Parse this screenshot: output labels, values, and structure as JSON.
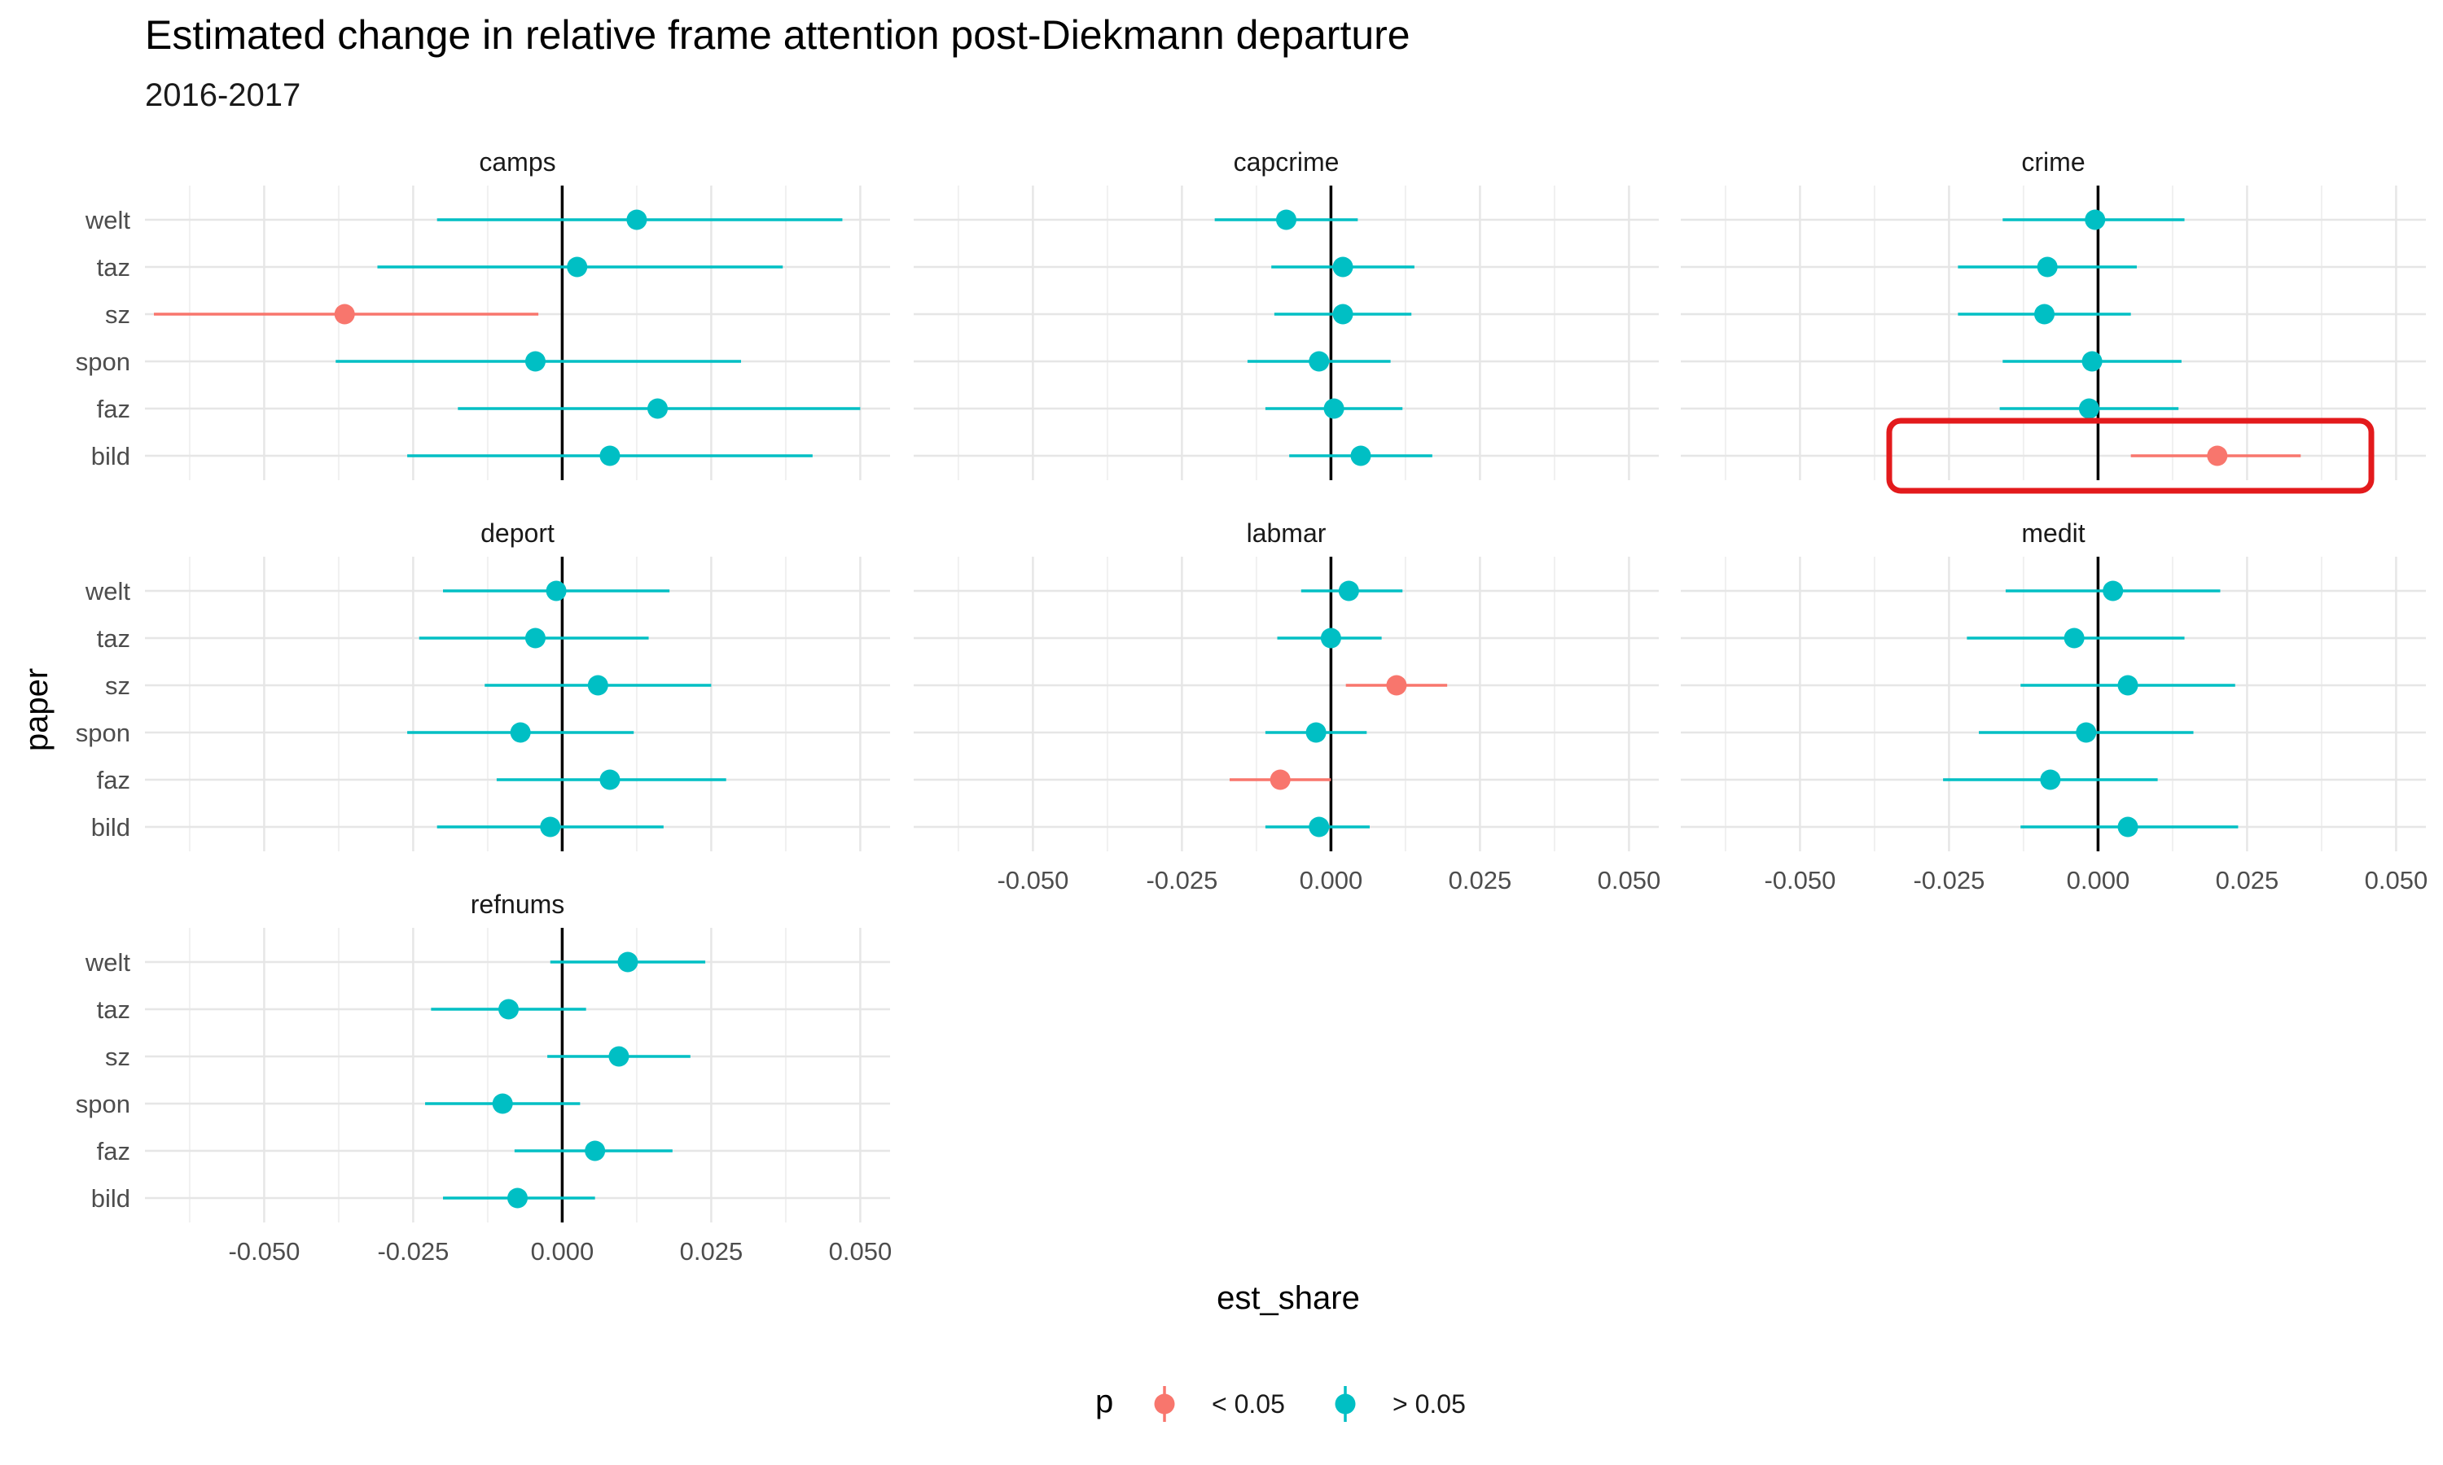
{
  "chart_data": {
    "type": "scatter",
    "title": "Estimated change in relative frame attention post-Diekmann departure",
    "subtitle": "2016-2017",
    "xlabel": "est_share",
    "ylabel": "paper",
    "xlim": [
      -0.07,
      0.055
    ],
    "x_ticks": [
      "-0.050",
      "-0.025",
      "0.000",
      "0.025",
      "0.050"
    ],
    "papers": [
      "welt",
      "taz",
      "sz",
      "spon",
      "faz",
      "bild"
    ],
    "grid": true,
    "legend": {
      "title": "p",
      "placement": "bottom",
      "entries": [
        {
          "label": "< 0.05",
          "color": "#F8766D"
        },
        {
          "label": "> 0.05",
          "color": "#00BFC4"
        }
      ]
    },
    "highlight_box": {
      "panel": "crime",
      "paper": "bild",
      "color": "#E31A1C"
    },
    "panels": [
      {
        "name": "camps",
        "points": [
          {
            "paper": "welt",
            "est": 0.0125,
            "lo": -0.021,
            "hi": 0.047,
            "sig": false
          },
          {
            "paper": "taz",
            "est": 0.0025,
            "lo": -0.031,
            "hi": 0.037,
            "sig": false
          },
          {
            "paper": "sz",
            "est": -0.0365,
            "lo": -0.0685,
            "hi": -0.004,
            "sig": true
          },
          {
            "paper": "spon",
            "est": -0.0045,
            "lo": -0.038,
            "hi": 0.03,
            "sig": false
          },
          {
            "paper": "faz",
            "est": 0.016,
            "lo": -0.0175,
            "hi": 0.05,
            "sig": false
          },
          {
            "paper": "bild",
            "est": 0.008,
            "lo": -0.026,
            "hi": 0.042,
            "sig": false
          }
        ]
      },
      {
        "name": "capcrime",
        "points": [
          {
            "paper": "welt",
            "est": -0.0075,
            "lo": -0.0195,
            "hi": 0.0045,
            "sig": false
          },
          {
            "paper": "taz",
            "est": 0.002,
            "lo": -0.01,
            "hi": 0.014,
            "sig": false
          },
          {
            "paper": "sz",
            "est": 0.002,
            "lo": -0.0095,
            "hi": 0.0135,
            "sig": false
          },
          {
            "paper": "spon",
            "est": -0.002,
            "lo": -0.014,
            "hi": 0.01,
            "sig": false
          },
          {
            "paper": "faz",
            "est": 0.0005,
            "lo": -0.011,
            "hi": 0.012,
            "sig": false
          },
          {
            "paper": "bild",
            "est": 0.005,
            "lo": -0.007,
            "hi": 0.017,
            "sig": false
          }
        ]
      },
      {
        "name": "crime",
        "points": [
          {
            "paper": "welt",
            "est": -0.0005,
            "lo": -0.016,
            "hi": 0.0145,
            "sig": false
          },
          {
            "paper": "taz",
            "est": -0.0085,
            "lo": -0.0235,
            "hi": 0.0065,
            "sig": false
          },
          {
            "paper": "sz",
            "est": -0.009,
            "lo": -0.0235,
            "hi": 0.0055,
            "sig": false
          },
          {
            "paper": "spon",
            "est": -0.001,
            "lo": -0.016,
            "hi": 0.014,
            "sig": false
          },
          {
            "paper": "faz",
            "est": -0.0015,
            "lo": -0.0165,
            "hi": 0.0135,
            "sig": false
          },
          {
            "paper": "bild",
            "est": 0.02,
            "lo": 0.0055,
            "hi": 0.034,
            "sig": true
          }
        ]
      },
      {
        "name": "deport",
        "points": [
          {
            "paper": "welt",
            "est": -0.001,
            "lo": -0.02,
            "hi": 0.018,
            "sig": false
          },
          {
            "paper": "taz",
            "est": -0.0045,
            "lo": -0.024,
            "hi": 0.0145,
            "sig": false
          },
          {
            "paper": "sz",
            "est": 0.006,
            "lo": -0.013,
            "hi": 0.025,
            "sig": false
          },
          {
            "paper": "spon",
            "est": -0.007,
            "lo": -0.026,
            "hi": 0.012,
            "sig": false
          },
          {
            "paper": "faz",
            "est": 0.008,
            "lo": -0.011,
            "hi": 0.0275,
            "sig": false
          },
          {
            "paper": "bild",
            "est": -0.002,
            "lo": -0.021,
            "hi": 0.017,
            "sig": false
          }
        ]
      },
      {
        "name": "labmar",
        "points": [
          {
            "paper": "welt",
            "est": 0.003,
            "lo": -0.005,
            "hi": 0.012,
            "sig": false
          },
          {
            "paper": "taz",
            "est": 0.0,
            "lo": -0.009,
            "hi": 0.0085,
            "sig": false
          },
          {
            "paper": "sz",
            "est": 0.011,
            "lo": 0.0025,
            "hi": 0.0195,
            "sig": true
          },
          {
            "paper": "spon",
            "est": -0.0025,
            "lo": -0.011,
            "hi": 0.006,
            "sig": false
          },
          {
            "paper": "faz",
            "est": -0.0085,
            "lo": -0.017,
            "hi": 0.0,
            "sig": true
          },
          {
            "paper": "bild",
            "est": -0.002,
            "lo": -0.011,
            "hi": 0.0065,
            "sig": false
          }
        ]
      },
      {
        "name": "medit",
        "points": [
          {
            "paper": "welt",
            "est": 0.0025,
            "lo": -0.0155,
            "hi": 0.0205,
            "sig": false
          },
          {
            "paper": "taz",
            "est": -0.004,
            "lo": -0.022,
            "hi": 0.0145,
            "sig": false
          },
          {
            "paper": "sz",
            "est": 0.005,
            "lo": -0.013,
            "hi": 0.023,
            "sig": false
          },
          {
            "paper": "spon",
            "est": -0.002,
            "lo": -0.02,
            "hi": 0.016,
            "sig": false
          },
          {
            "paper": "faz",
            "est": -0.008,
            "lo": -0.026,
            "hi": 0.01,
            "sig": false
          },
          {
            "paper": "bild",
            "est": 0.005,
            "lo": -0.013,
            "hi": 0.0235,
            "sig": false
          }
        ]
      },
      {
        "name": "refnums",
        "points": [
          {
            "paper": "welt",
            "est": 0.011,
            "lo": -0.002,
            "hi": 0.024,
            "sig": false
          },
          {
            "paper": "taz",
            "est": -0.009,
            "lo": -0.022,
            "hi": 0.004,
            "sig": false
          },
          {
            "paper": "sz",
            "est": 0.0095,
            "lo": -0.0025,
            "hi": 0.0215,
            "sig": false
          },
          {
            "paper": "spon",
            "est": -0.01,
            "lo": -0.023,
            "hi": 0.003,
            "sig": false
          },
          {
            "paper": "faz",
            "est": 0.0055,
            "lo": -0.008,
            "hi": 0.0185,
            "sig": false
          },
          {
            "paper": "bild",
            "est": -0.0075,
            "lo": -0.02,
            "hi": 0.0055,
            "sig": false
          }
        ]
      }
    ]
  }
}
